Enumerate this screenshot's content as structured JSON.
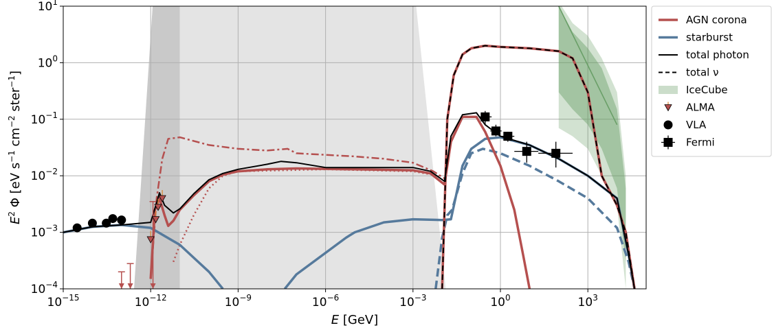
{
  "chart_data": {
    "type": "line",
    "title": "",
    "xlabel": "E [GeV]",
    "ylabel": "E^2 Φ [eV s^-1 cm^-2 ster^-1]",
    "xscale": "log",
    "yscale": "log",
    "xlim": [
      1e-15,
      100000.0
    ],
    "ylim": [
      0.0001,
      10
    ],
    "grid": true,
    "legend_position": "right, outside plot area",
    "x_ticks": [
      {
        "value": 1e-15,
        "base": "10",
        "exp": "−15"
      },
      {
        "value": 1e-12,
        "base": "10",
        "exp": "−12"
      },
      {
        "value": 1e-09,
        "base": "10",
        "exp": "−9"
      },
      {
        "value": 1e-06,
        "base": "10",
        "exp": "−6"
      },
      {
        "value": 0.001,
        "base": "10",
        "exp": "−3"
      },
      {
        "value": 1,
        "base": "10",
        "exp": "0"
      },
      {
        "value": 1000.0,
        "base": "10",
        "exp": "3"
      }
    ],
    "y_ticks": [
      {
        "value": 0.0001,
        "base": "10",
        "exp": "−4"
      },
      {
        "value": 0.001,
        "base": "10",
        "exp": "−3"
      },
      {
        "value": 0.01,
        "base": "10",
        "exp": "−2"
      },
      {
        "value": 0.1,
        "base": "10",
        "exp": "−1"
      },
      {
        "value": 1,
        "base": "10",
        "exp": "0"
      },
      {
        "value": 10,
        "base": "10",
        "exp": "1"
      }
    ],
    "colors": {
      "agn": "#b5504f",
      "starburst": "#567a9c",
      "total": "#000000",
      "icecube": "#6a9f68",
      "band_dark": "#c9c9c9",
      "band_light": "#e4e4e4"
    },
    "legend": [
      {
        "label": "AGN corona",
        "key": "agn"
      },
      {
        "label": "starburst",
        "key": "starburst"
      },
      {
        "label": "total photon",
        "key": "total_photon"
      },
      {
        "label": "total ν",
        "key": "total_nu"
      },
      {
        "label": "IceCube",
        "key": "icecube"
      },
      {
        "label": "ALMA",
        "key": "alma"
      },
      {
        "label": "VLA",
        "key": "vla"
      },
      {
        "label": "Fermi",
        "key": "fermi"
      }
    ],
    "shaded_regions": [
      {
        "name": "opaque-band-dark",
        "x": [
          1.8e-12,
          1e-11
        ]
      },
      {
        "name": "opaque-band-light",
        "x": [
          1e-11,
          0.005
        ]
      }
    ],
    "series": [
      {
        "name": "AGN corona",
        "key": "agn_photon_solid",
        "points": [
          [
            1e-12,
            0.00015
          ],
          [
            1.4e-12,
            0.0025
          ],
          [
            2e-12,
            0.004
          ],
          [
            3e-12,
            0.002
          ],
          [
            4e-12,
            0.0013
          ],
          [
            6e-12,
            0.0016
          ],
          [
            1e-11,
            0.0025
          ],
          [
            3e-11,
            0.0045
          ],
          [
            1e-10,
            0.008
          ],
          [
            3e-10,
            0.0105
          ],
          [
            1e-09,
            0.012
          ],
          [
            1e-08,
            0.013
          ],
          [
            1e-07,
            0.0135
          ],
          [
            1e-05,
            0.013
          ],
          [
            0.001,
            0.0125
          ],
          [
            0.004,
            0.011
          ],
          [
            0.012,
            0.007
          ],
          [
            0.02,
            0.04
          ],
          [
            0.05,
            0.11
          ],
          [
            0.15,
            0.11
          ],
          [
            0.3,
            0.06
          ],
          [
            1,
            0.015
          ],
          [
            3,
            0.0025
          ],
          [
            6,
            0.0004
          ],
          [
            10.0,
            0.0001
          ]
        ]
      },
      {
        "name": "AGN corona ν",
        "key": "agn_nu_dashdot",
        "points": [
          [
            1e-12,
            0.00015
          ],
          [
            1.6e-12,
            0.004
          ],
          [
            2.5e-12,
            0.02
          ],
          [
            4e-12,
            0.045
          ],
          [
            1e-11,
            0.048
          ],
          [
            1e-10,
            0.035
          ],
          [
            1e-09,
            0.03
          ],
          [
            1e-08,
            0.028
          ],
          [
            5e-08,
            0.03
          ],
          [
            1e-07,
            0.025
          ],
          [
            1e-05,
            0.022
          ],
          [
            0.0001,
            0.02
          ],
          [
            0.001,
            0.017
          ],
          [
            0.005,
            0.012
          ],
          [
            0.012,
            0.009
          ]
        ]
      },
      {
        "name": "AGN corona dotted",
        "key": "agn_dotted",
        "points": [
          [
            6e-12,
            0.0003
          ],
          [
            1e-11,
            0.0006
          ],
          [
            3e-11,
            0.002
          ],
          [
            1e-10,
            0.006
          ],
          [
            3e-10,
            0.01
          ],
          [
            1e-09,
            0.012
          ],
          [
            1e-06,
            0.013
          ],
          [
            0.001,
            0.012
          ],
          [
            0.008,
            0.01
          ]
        ]
      },
      {
        "name": "starburst",
        "key": "starburst_solid",
        "points": [
          [
            1e-15,
            0.001
          ],
          [
            1e-14,
            0.00125
          ],
          [
            1e-13,
            0.00135
          ],
          [
            1e-12,
            0.0012
          ],
          [
            1e-11,
            0.0006
          ],
          [
            1e-10,
            0.0002
          ],
          [
            3e-10,
            0.0001
          ]
        ]
      },
      {
        "name": "starburst high",
        "key": "starburst_solid_high",
        "points": [
          [
            4e-08,
            0.0001
          ],
          [
            1e-07,
            0.00018
          ],
          [
            5e-06,
            0.0008
          ],
          [
            1e-05,
            0.001
          ],
          [
            0.0001,
            0.0015
          ],
          [
            0.001,
            0.0017
          ],
          [
            0.01,
            0.00165
          ],
          [
            0.02,
            0.0017
          ],
          [
            0.05,
            0.015
          ],
          [
            0.1,
            0.03
          ],
          [
            0.3,
            0.045
          ],
          [
            1,
            0.048
          ],
          [
            10.0,
            0.035
          ],
          [
            100.0,
            0.02
          ],
          [
            1000.0,
            0.01
          ],
          [
            10000.0,
            0.004
          ],
          [
            25000.0,
            0.0004
          ],
          [
            40000.0,
            0.0001
          ]
        ]
      },
      {
        "name": "starburst ν",
        "key": "starburst_dashed",
        "points": [
          [
            0.006,
            0.0001
          ],
          [
            0.01,
            0.0008
          ],
          [
            0.015,
            0.002
          ],
          [
            0.022,
            0.0025
          ],
          [
            0.05,
            0.011
          ],
          [
            0.1,
            0.025
          ],
          [
            0.25,
            0.03
          ],
          [
            1,
            0.025
          ],
          [
            10.0,
            0.015
          ],
          [
            100.0,
            0.008
          ],
          [
            1000.0,
            0.004
          ],
          [
            10000.0,
            0.0012
          ],
          [
            25000.0,
            0.0003
          ],
          [
            40000.0,
            0.0001
          ]
        ]
      },
      {
        "name": "total photon",
        "key": "total_photon",
        "points": [
          [
            1e-15,
            0.001
          ],
          [
            1e-14,
            0.00125
          ],
          [
            1e-13,
            0.00135
          ],
          [
            1e-12,
            0.0015
          ],
          [
            1.5e-12,
            0.003
          ],
          [
            2e-12,
            0.005
          ],
          [
            3e-12,
            0.003
          ],
          [
            6e-12,
            0.0022
          ],
          [
            1e-11,
            0.0026
          ],
          [
            3e-11,
            0.0048
          ],
          [
            1e-10,
            0.0085
          ],
          [
            3e-10,
            0.011
          ],
          [
            1e-09,
            0.013
          ],
          [
            1e-08,
            0.016
          ],
          [
            3e-08,
            0.018
          ],
          [
            1e-07,
            0.017
          ],
          [
            1e-06,
            0.014
          ],
          [
            0.0001,
            0.014
          ],
          [
            0.001,
            0.014
          ],
          [
            0.004,
            0.012
          ],
          [
            0.012,
            0.008
          ],
          [
            0.02,
            0.05
          ],
          [
            0.05,
            0.12
          ],
          [
            0.15,
            0.13
          ],
          [
            0.3,
            0.08
          ],
          [
            1,
            0.05
          ],
          [
            10.0,
            0.035
          ],
          [
            100.0,
            0.02
          ],
          [
            1000.0,
            0.01
          ],
          [
            10000.0,
            0.004
          ],
          [
            25000.0,
            0.0004
          ],
          [
            40000.0,
            0.0001
          ]
        ]
      },
      {
        "name": "total ν",
        "key": "total_nu",
        "points": [
          [
            0.01,
            0.0001
          ],
          [
            0.015,
            0.1
          ],
          [
            0.025,
            0.6
          ],
          [
            0.05,
            1.4
          ],
          [
            0.1,
            1.8
          ],
          [
            0.3,
            2
          ],
          [
            1,
            1.9
          ],
          [
            10.0,
            1.8
          ],
          [
            100.0,
            1.6
          ],
          [
            300.0,
            1.2
          ],
          [
            1000.0,
            0.3
          ],
          [
            3000.0,
            0.01
          ],
          [
            10000.0,
            0.003
          ],
          [
            20000.0,
            0.001
          ],
          [
            40000.0,
            0.0001
          ]
        ]
      }
    ],
    "icecube_band": {
      "x": [
        100.0,
        300.0,
        1000.0,
        3000.0,
        10000.0,
        20000.0
      ],
      "upper": [
        12,
        5,
        3,
        1.2,
        0.3,
        0.01
      ],
      "lower": [
        0.07,
        0.05,
        0.03,
        0.01,
        0.003,
        0.0001
      ],
      "inner_upper": [
        10,
        3.5,
        1.8,
        0.8,
        0.15,
        0.006
      ],
      "inner_lower": [
        0.3,
        0.15,
        0.08,
        0.03,
        0.006,
        0.0003
      ],
      "bestfit": [
        [
          100.0,
          10
        ],
        [
          10000.0,
          0.08
        ]
      ]
    },
    "data_points": {
      "VLA": [
        [
          3e-15,
          0.0012
        ],
        [
          1e-14,
          0.00145
        ],
        [
          3e-14,
          0.00145
        ],
        [
          5e-14,
          0.00175
        ],
        [
          1e-13,
          0.00165
        ]
      ],
      "ALMA": [
        [
          1e-12,
          0.00075
        ],
        [
          1.5e-12,
          0.0017
        ],
        [
          1.8e-12,
          0.0028
        ],
        [
          2.5e-12,
          0.004
        ]
      ],
      "Fermi": [
        {
          "x": 0.3,
          "y": 0.11,
          "xerr": [
            0.18,
            0.5
          ],
          "yerr": [
            0.08,
            0.14
          ]
        },
        {
          "x": 0.7,
          "y": 0.062,
          "xerr": [
            0.45,
            1.1
          ],
          "yerr": [
            0.05,
            0.08
          ]
        },
        {
          "x": 1.8,
          "y": 0.05,
          "xerr": [
            1.1,
            3
          ],
          "yerr": [
            0.04,
            0.06
          ]
        },
        {
          "x": 8,
          "y": 0.027,
          "xerr": [
            3,
            20.0
          ],
          "yerr": [
            0.017,
            0.04
          ]
        },
        {
          "x": 80.0,
          "y": 0.025,
          "xerr": [
            20.0,
            300.0
          ],
          "yerr": [
            0.014,
            0.04
          ]
        }
      ],
      "upper_limits": [
        {
          "x": 1e-13,
          "y_top": 0.0002,
          "color": "#b5504f"
        },
        {
          "x": 2e-13,
          "y_top": 0.00028,
          "color": "#b5504f"
        },
        {
          "x": 1.2e-12,
          "y_top": 0.0035,
          "color": "#b5504f"
        }
      ]
    }
  }
}
